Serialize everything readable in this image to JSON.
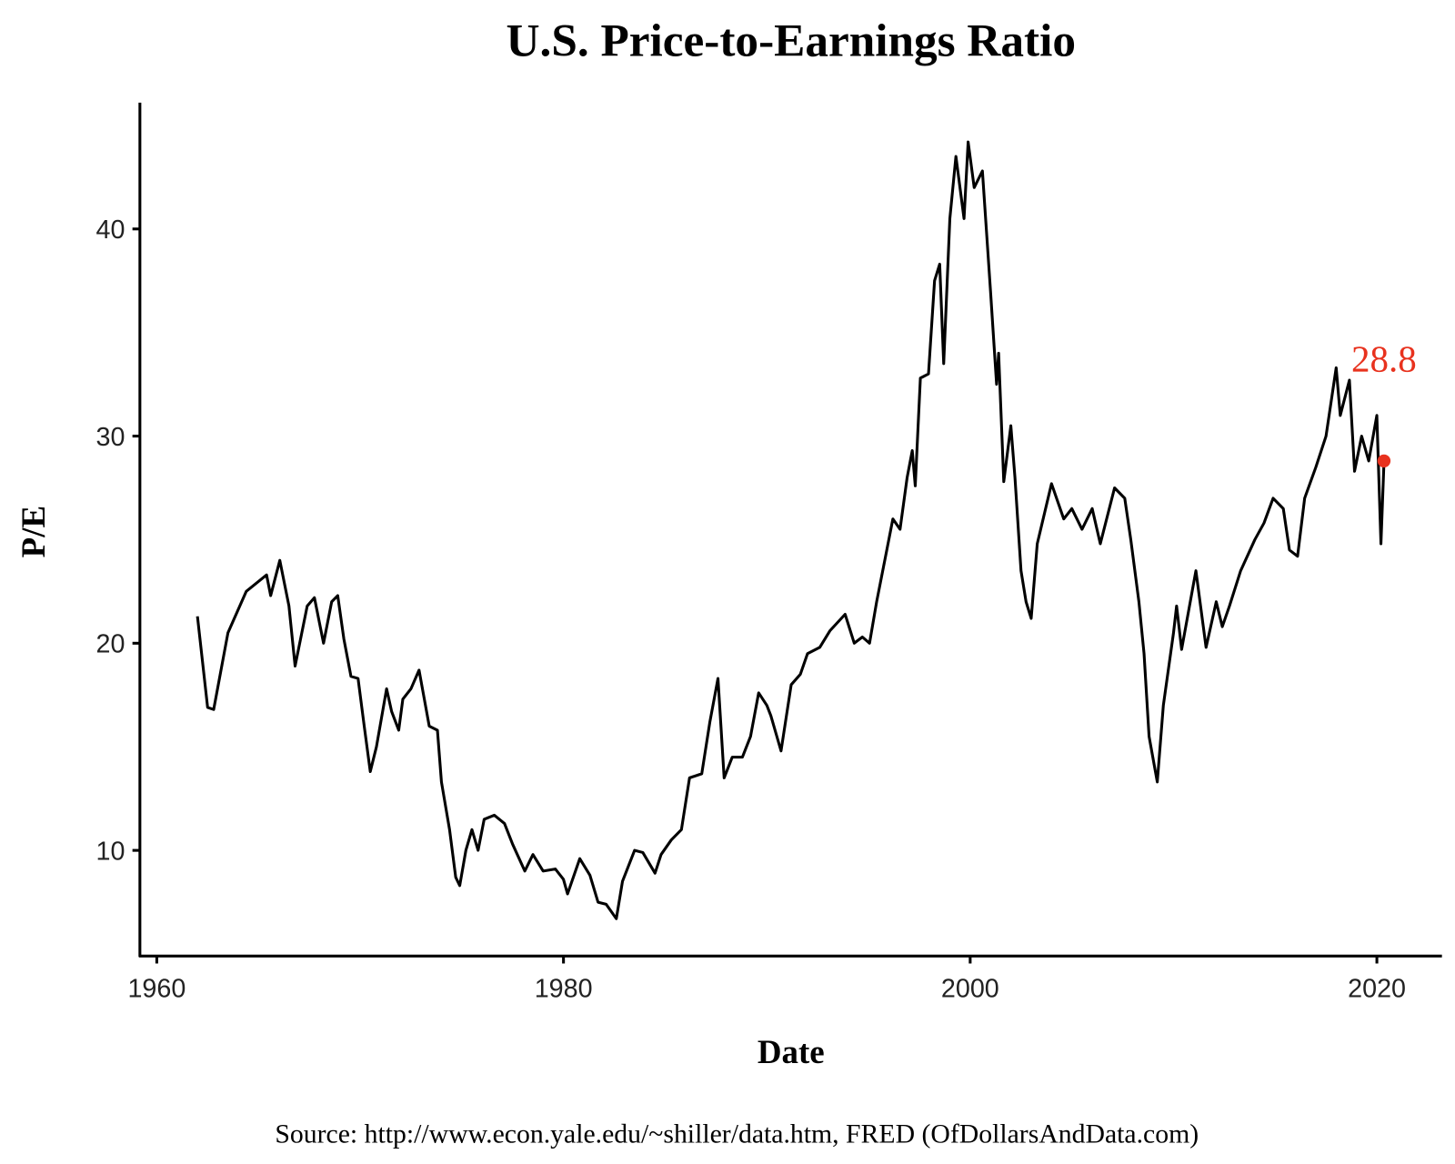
{
  "chart_data": {
    "type": "line",
    "title": "U.S. Price-to-Earnings Ratio",
    "x_label": "Date",
    "y_label": "P/E",
    "source": "Source:  http://www.econ.yale.edu/~shiller/data.htm, FRED (OfDollarsAndData.com)",
    "xlim": [
      1959.17,
      2023.2
    ],
    "xticks": [
      1960,
      1980,
      2000,
      2020
    ],
    "ylim": [
      4.9,
      46.1
    ],
    "yticks": [
      10,
      20,
      30,
      40
    ],
    "grid": false,
    "color": "#000000",
    "x": [
      1962.0,
      1962.5,
      1962.8,
      1963.5,
      1964.4,
      1965.4,
      1965.6,
      1966.05,
      1966.5,
      1966.8,
      1967.4,
      1967.75,
      1968.2,
      1968.6,
      1968.9,
      1969.2,
      1969.55,
      1969.9,
      1970.2,
      1970.5,
      1970.8,
      1971.3,
      1971.55,
      1971.9,
      1972.1,
      1972.5,
      1972.9,
      1973.4,
      1973.8,
      1974.0,
      1974.4,
      1974.7,
      1974.9,
      1975.2,
      1975.5,
      1975.8,
      1976.1,
      1976.6,
      1977.1,
      1977.5,
      1978.1,
      1978.5,
      1979.0,
      1979.6,
      1980.0,
      1980.2,
      1980.8,
      1981.3,
      1981.7,
      1982.1,
      1982.6,
      1982.9,
      1983.5,
      1983.9,
      1984.5,
      1984.8,
      1985.3,
      1985.8,
      1986.2,
      1986.8,
      1987.2,
      1987.6,
      1987.9,
      1988.3,
      1988.8,
      1989.2,
      1989.6,
      1990.0,
      1990.2,
      1990.7,
      1991.2,
      1991.65,
      1992.0,
      1992.6,
      1993.1,
      1993.85,
      1994.3,
      1994.7,
      1995.05,
      1995.4,
      1995.9,
      1996.2,
      1996.55,
      1996.9,
      1997.15,
      1997.3,
      1997.55,
      1997.95,
      1998.25,
      1998.5,
      1998.7,
      1999.0,
      1999.3,
      1999.7,
      1999.9,
      2000.2,
      2000.6,
      2001.0,
      2001.3,
      2001.4,
      2001.65,
      2002.0,
      2002.2,
      2002.5,
      2002.75,
      2003.0,
      2003.3,
      2004.0,
      2004.6,
      2005.0,
      2005.5,
      2006.0,
      2006.4,
      2007.1,
      2007.6,
      2007.9,
      2008.3,
      2008.55,
      2008.8,
      2009.2,
      2009.5,
      2010.0,
      2010.15,
      2010.4,
      2011.1,
      2011.6,
      2012.1,
      2012.4,
      2012.75,
      2013.3,
      2014.0,
      2014.45,
      2014.9,
      2015.4,
      2015.7,
      2016.1,
      2016.45,
      2017.0,
      2017.5,
      2018.0,
      2018.2,
      2018.65,
      2018.9,
      2019.25,
      2019.6,
      2020.0,
      2020.2,
      2020.35
    ],
    "values": [
      21.3,
      16.9,
      16.8,
      20.5,
      22.5,
      23.3,
      22.3,
      24.0,
      21.8,
      18.9,
      21.8,
      22.2,
      20.0,
      22.0,
      22.3,
      20.2,
      18.4,
      18.3,
      16.0,
      13.8,
      15.0,
      17.8,
      16.7,
      15.8,
      17.3,
      17.8,
      18.7,
      16.0,
      15.8,
      13.3,
      11.0,
      8.7,
      8.3,
      10.0,
      11.0,
      10.0,
      11.5,
      11.7,
      11.3,
      10.3,
      9.0,
      9.8,
      9.0,
      9.1,
      8.6,
      7.9,
      9.6,
      8.8,
      7.5,
      7.4,
      6.7,
      8.5,
      10.0,
      9.9,
      8.9,
      9.8,
      10.5,
      11.0,
      13.5,
      13.7,
      16.2,
      18.3,
      13.5,
      14.5,
      14.5,
      15.5,
      17.6,
      17.0,
      16.5,
      14.8,
      18.0,
      18.5,
      19.5,
      19.8,
      20.6,
      21.4,
      20.0,
      20.3,
      20.0,
      22.0,
      24.5,
      26.0,
      25.5,
      28.0,
      29.3,
      27.6,
      32.8,
      33.0,
      37.5,
      38.3,
      33.5,
      40.5,
      43.5,
      40.5,
      44.2,
      42.0,
      42.8,
      37.0,
      32.5,
      34.0,
      27.8,
      30.5,
      28.0,
      23.5,
      22.0,
      21.2,
      24.8,
      27.7,
      26.0,
      26.5,
      25.5,
      26.5,
      24.8,
      27.5,
      27.0,
      25.0,
      22.0,
      19.5,
      15.5,
      13.3,
      17.0,
      20.5,
      21.8,
      19.7,
      23.5,
      19.8,
      22.0,
      20.8,
      21.8,
      23.5,
      25.0,
      25.8,
      27.0,
      26.5,
      24.5,
      24.2,
      27.0,
      28.5,
      30.0,
      33.3,
      31.0,
      32.7,
      28.3,
      30.0,
      28.8,
      31.0,
      24.8,
      28.8
    ],
    "annotations": [
      {
        "text": "28.8",
        "x": 2020.35,
        "y": 28.8,
        "color": "#e8321e"
      }
    ]
  }
}
